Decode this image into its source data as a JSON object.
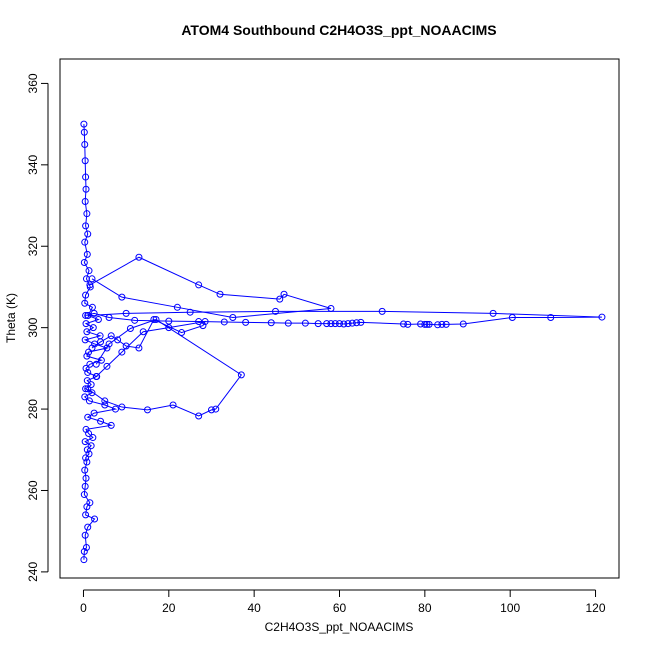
{
  "chart_data": {
    "type": "line",
    "title": "ATOM4 Southbound C2H4O3S_ppt_NOAACIMS",
    "xlabel": "C2H4O3S_ppt_NOAACIMS",
    "ylabel": "Theta (K)",
    "xlim": [
      -5.5,
      125.5
    ],
    "ylim": [
      238.5,
      366
    ],
    "x_ticks": [
      0,
      20,
      40,
      60,
      80,
      100,
      120
    ],
    "y_ticks": [
      240,
      260,
      280,
      300,
      320,
      340,
      360
    ],
    "grid": false,
    "legend": "none",
    "marker": "open-circle",
    "color": "#0000ff",
    "series": [
      {
        "x": [
          0.1,
          0.2,
          0.3,
          0.4,
          0.5,
          0.6,
          0.4,
          0.8,
          0.5,
          1.0,
          0.3,
          0.9,
          0.2,
          1.3,
          0.7,
          1.6,
          0.5,
          0.3,
          2.1,
          1.1,
          3.5,
          0.6,
          2.3,
          0.8,
          3.9,
          0.4,
          2.6,
          5.5,
          1.2,
          0.8,
          4.2,
          1.5,
          0.6,
          1.0,
          3.1,
          0.9,
          1.8,
          0.5,
          2.0,
          0.3,
          1.4,
          5.0,
          7.5,
          2.5,
          1.0,
          4.0,
          6.5,
          0.6,
          1.2,
          2.2,
          0.4,
          1.8,
          0.9,
          1.3,
          0.5,
          0.8,
          0.3,
          0.6,
          0.4,
          0.2,
          1.5,
          0.8,
          0.5,
          2.6,
          1.0,
          0.4,
          0.7,
          0.2,
          0.1
        ],
        "y": [
          350,
          348,
          345,
          341,
          337,
          334,
          331,
          328,
          325,
          323,
          321,
          318,
          316,
          314,
          312,
          310,
          308,
          306,
          305,
          303,
          302,
          301,
          300,
          299,
          298,
          297,
          296,
          295,
          294,
          293,
          292,
          291,
          290,
          289,
          288,
          287,
          286,
          285,
          284,
          283,
          282,
          281,
          280,
          279,
          278,
          277,
          276,
          275,
          274,
          273,
          272,
          271,
          270,
          269,
          268,
          267,
          265,
          263,
          261,
          259,
          257,
          256,
          254,
          253,
          251,
          249,
          246,
          245,
          243
        ]
      },
      {
        "x": [
          0.5,
          2.5,
          6.0,
          12.0,
          20.0,
          27.0,
          33.0,
          38.0,
          44.0,
          48.0,
          52.0,
          55.0,
          57.0,
          58.0,
          59.0,
          60.0,
          61.0,
          62.0,
          63.0,
          64.0,
          65.0,
          75.0,
          76.0,
          79.0,
          80.0,
          80.5,
          81.0,
          83.0,
          84.0,
          85.0,
          89.0,
          100.5,
          109.5,
          121.5,
          96.0,
          70.0,
          45.0,
          25.0,
          10.0,
          1.0
        ],
        "y": [
          303,
          303.5,
          302.5,
          301.8,
          301.6,
          301.5,
          301.4,
          301.3,
          301.2,
          301.1,
          301.1,
          301.0,
          301.0,
          301.0,
          301.0,
          301.0,
          300.9,
          301.0,
          301.1,
          301.2,
          301.3,
          300.9,
          300.8,
          300.9,
          300.8,
          300.8,
          300.8,
          300.7,
          300.8,
          300.8,
          300.9,
          302.5,
          302.5,
          302.6,
          303.5,
          304.0,
          304.0,
          303.8,
          303.5,
          303.0
        ]
      },
      {
        "x": [
          1.5,
          13.0,
          27.0,
          32.0,
          46.0,
          47.0,
          58.0,
          35.0,
          22.0,
          9.0,
          2.0
        ],
        "y": [
          310.5,
          317.3,
          310.5,
          308.2,
          307.0,
          308.2,
          304.7,
          302.5,
          305.0,
          307.5,
          312.0
        ]
      },
      {
        "x": [
          1.0,
          5.0,
          9.0,
          15.0,
          21.0,
          27.0,
          30.0,
          31.0,
          37.0,
          17.0,
          11.0,
          6.0,
          3.0
        ],
        "y": [
          285.0,
          282.0,
          280.5,
          279.8,
          281.0,
          278.3,
          279.8,
          280.0,
          288.4,
          302.0,
          299.8,
          296.0,
          291.0
        ]
      },
      {
        "x": [
          2.0,
          4.0,
          6.5,
          8.0,
          10.0,
          13.0,
          16.5,
          23.0,
          28.0,
          28.5,
          20.0,
          14.0,
          9.0,
          5.5,
          3.0
        ],
        "y": [
          295.0,
          296.5,
          298.0,
          297.0,
          295.5,
          295.0,
          302.0,
          298.8,
          300.5,
          301.5,
          300.0,
          299.0,
          294.0,
          290.5,
          288.0
        ]
      }
    ]
  }
}
